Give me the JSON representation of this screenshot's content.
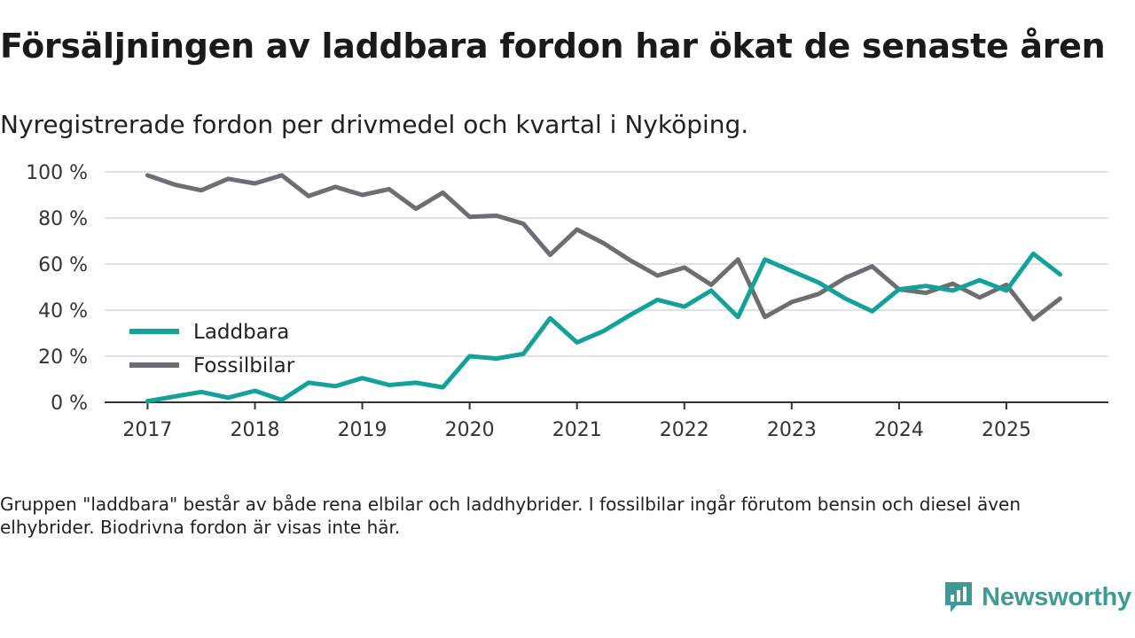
{
  "title": "Försäljningen av laddbara fordon har ökat de senaste åren",
  "subtitle": "Nyregistrerade fordon per drivmedel och kvartal i Nyköping.",
  "note": "Gruppen \"laddbara\" består av både rena elbilar och laddhybrider. I fossilbilar ingår förutom bensin och diesel även elhybrider. Biodrivna fordon är visas inte här.",
  "brand": {
    "name": "Newsworthy"
  },
  "colors": {
    "laddbara": "#14a19a",
    "fossil": "#6e6d74",
    "grid": "#d9d9d9",
    "axis": "#333333",
    "brand": "#3f9a93"
  },
  "chart_data": {
    "type": "line",
    "x": [
      2017,
      2017.25,
      2017.5,
      2017.75,
      2018,
      2018.25,
      2018.5,
      2018.75,
      2019,
      2019.25,
      2019.5,
      2019.75,
      2020,
      2020.25,
      2020.5,
      2020.75,
      2021,
      2021.25,
      2021.5,
      2021.75,
      2022,
      2022.25,
      2022.5,
      2022.75,
      2023,
      2023.25,
      2023.5,
      2023.75,
      2024,
      2024.25,
      2024.5,
      2024.75,
      2025,
      2025.25,
      2025.5
    ],
    "series": [
      {
        "name": "Laddbara",
        "color": "#14a19a",
        "values": [
          0.5,
          2.5,
          4.5,
          2,
          5,
          1,
          8.5,
          7,
          10.5,
          7.5,
          8.5,
          6.5,
          20,
          19,
          21,
          36.5,
          26,
          31,
          38,
          44.5,
          41.5,
          48.5,
          37,
          62,
          57,
          52,
          45,
          39.5,
          49,
          50.5,
          48.5,
          53,
          48.5,
          64.5,
          55.5
        ]
      },
      {
        "name": "Fossilbilar",
        "color": "#6e6d74",
        "values": [
          98.5,
          94.5,
          92,
          97,
          95,
          98.5,
          89.5,
          93.5,
          90,
          92.5,
          84,
          91,
          80.5,
          81,
          77.5,
          64,
          75,
          69,
          61.5,
          55,
          58.5,
          51,
          62,
          37,
          43.5,
          47,
          54,
          59,
          49,
          47.5,
          51.5,
          45.5,
          51,
          36,
          45
        ]
      }
    ],
    "title": "Försäljningen av laddbara fordon har ökat de senaste åren",
    "xlabel": "",
    "ylabel": "",
    "xticks": [
      2017,
      2018,
      2019,
      2020,
      2021,
      2022,
      2023,
      2024,
      2025
    ],
    "xtick_labels": [
      "2017",
      "2018",
      "2019",
      "2020",
      "2021",
      "2022",
      "2023",
      "2024",
      "2025"
    ],
    "yticks": [
      0,
      20,
      40,
      60,
      80,
      100
    ],
    "ytick_labels": [
      "0 %",
      "20 %",
      "40 %",
      "60 %",
      "80 %",
      "100 %"
    ],
    "ylim": [
      0,
      100
    ],
    "grid": true,
    "legend_position": "bottom-left"
  }
}
